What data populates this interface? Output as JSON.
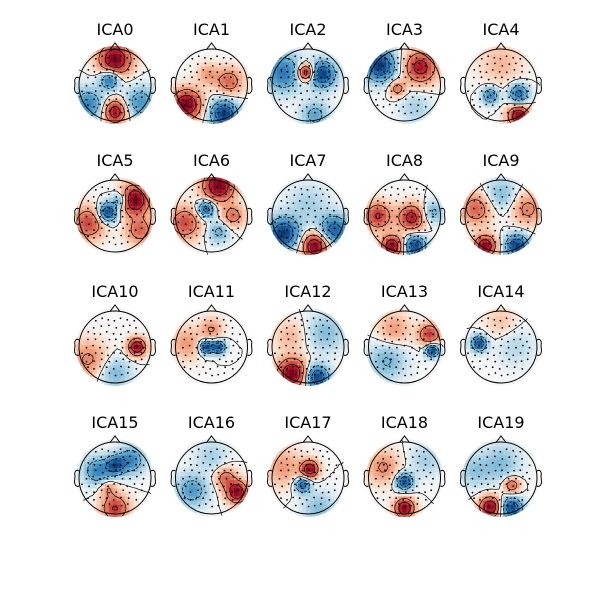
{
  "figure": {
    "components": [
      {
        "title": "ICA0",
        "poles": [
          {
            "p": [
              0.0,
              0.72
            ],
            "s": 0.3,
            "v": 1.0
          },
          {
            "p": [
              -0.15,
              0.15
            ],
            "s": 0.18,
            "v": -0.8
          },
          {
            "p": [
              0.0,
              -0.75
            ],
            "s": 0.22,
            "v": 0.9
          },
          {
            "p": [
              -0.75,
              -0.55
            ],
            "s": 0.3,
            "v": -0.6
          },
          {
            "p": [
              0.72,
              -0.5
            ],
            "s": 0.3,
            "v": -0.5
          }
        ]
      },
      {
        "title": "ICA1",
        "poles": [
          {
            "p": [
              -0.7,
              -0.55
            ],
            "s": 0.28,
            "v": 1.0
          },
          {
            "p": [
              0.35,
              -0.82
            ],
            "s": 0.26,
            "v": -1.0
          },
          {
            "p": [
              0.5,
              0.1
            ],
            "s": 0.25,
            "v": 0.5
          },
          {
            "p": [
              -0.1,
              0.3
            ],
            "s": 0.2,
            "v": 0.3
          }
        ]
      },
      {
        "title": "ICA2",
        "poles": [
          {
            "p": [
              -0.05,
              0.35
            ],
            "s": 0.16,
            "v": 1.0
          },
          {
            "p": [
              0.4,
              0.3
            ],
            "s": 0.25,
            "v": -0.9
          },
          {
            "p": [
              -0.7,
              0.35
            ],
            "s": 0.35,
            "v": -0.6
          },
          {
            "p": [
              0.2,
              -0.85
            ],
            "s": 0.25,
            "v": -0.4
          }
        ]
      },
      {
        "title": "ICA3",
        "poles": [
          {
            "p": [
              -0.7,
              0.55
            ],
            "s": 0.3,
            "v": -1.0
          },
          {
            "p": [
              0.45,
              0.5
            ],
            "s": 0.3,
            "v": 0.8
          },
          {
            "p": [
              -0.2,
              -0.1
            ],
            "s": 0.15,
            "v": 0.5
          },
          {
            "p": [
              0.3,
              -0.65
            ],
            "s": 0.3,
            "v": -0.2
          }
        ]
      },
      {
        "title": "ICA4",
        "poles": [
          {
            "p": [
              0.5,
              -0.88
            ],
            "s": 0.2,
            "v": 1.0
          },
          {
            "p": [
              0.5,
              -0.25
            ],
            "s": 0.18,
            "v": -0.8
          },
          {
            "p": [
              -0.3,
              -0.3
            ],
            "s": 0.15,
            "v": -0.7
          },
          {
            "p": [
              0.0,
              0.6
            ],
            "s": 0.4,
            "v": 0.2
          }
        ]
      },
      {
        "title": "ICA5",
        "poles": [
          {
            "p": [
              -0.2,
              0.1
            ],
            "s": 0.18,
            "v": -1.0
          },
          {
            "p": [
              0.15,
              0.45
            ],
            "s": 0.15,
            "v": -0.6
          },
          {
            "p": [
              0.55,
              0.45
            ],
            "s": 0.28,
            "v": 1.0
          },
          {
            "p": [
              -0.75,
              -0.2
            ],
            "s": 0.3,
            "v": 0.6
          },
          {
            "p": [
              0.7,
              -0.4
            ],
            "s": 0.25,
            "v": 0.5
          }
        ]
      },
      {
        "title": "ICA6",
        "poles": [
          {
            "p": [
              0.2,
              0.85
            ],
            "s": 0.3,
            "v": 1.0
          },
          {
            "p": [
              -0.15,
              0.2
            ],
            "s": 0.16,
            "v": -0.9
          },
          {
            "p": [
              -0.75,
              -0.2
            ],
            "s": 0.3,
            "v": 0.6
          },
          {
            "p": [
              0.6,
              0.0
            ],
            "s": 0.2,
            "v": 0.5
          },
          {
            "p": [
              0.2,
              -0.45
            ],
            "s": 0.2,
            "v": -0.4
          }
        ]
      },
      {
        "title": "ICA7",
        "poles": [
          {
            "p": [
              -0.7,
              -0.5
            ],
            "s": 0.3,
            "v": -1.0
          },
          {
            "p": [
              0.75,
              -0.4
            ],
            "s": 0.28,
            "v": -0.8
          },
          {
            "p": [
              0.2,
              -0.85
            ],
            "s": 0.25,
            "v": 1.0
          },
          {
            "p": [
              0.0,
              0.3
            ],
            "s": 0.4,
            "v": -0.2
          }
        ]
      },
      {
        "title": "ICA8",
        "poles": [
          {
            "p": [
              0.3,
              -0.85
            ],
            "s": 0.2,
            "v": -1.0
          },
          {
            "p": [
              -0.35,
              -0.85
            ],
            "s": 0.2,
            "v": 1.0
          },
          {
            "p": [
              0.2,
              -0.05
            ],
            "s": 0.25,
            "v": 0.8
          },
          {
            "p": [
              -0.75,
              0.0
            ],
            "s": 0.25,
            "v": 0.7
          },
          {
            "p": [
              0.8,
              0.1
            ],
            "s": 0.2,
            "v": -0.4
          }
        ]
      },
      {
        "title": "ICA9",
        "poles": [
          {
            "p": [
              -0.45,
              -0.85
            ],
            "s": 0.2,
            "v": 1.0
          },
          {
            "p": [
              0.45,
              -0.85
            ],
            "s": 0.22,
            "v": -1.0
          },
          {
            "p": [
              -0.7,
              0.2
            ],
            "s": 0.3,
            "v": 0.5
          },
          {
            "p": [
              0.75,
              0.2
            ],
            "s": 0.3,
            "v": 0.4
          },
          {
            "p": [
              0.0,
              0.6
            ],
            "s": 0.3,
            "v": -0.3
          }
        ]
      },
      {
        "title": "ICA10",
        "poles": [
          {
            "p": [
              0.62,
              0.0
            ],
            "s": 0.16,
            "v": 1.0
          },
          {
            "p": [
              -0.75,
              -0.35
            ],
            "s": 0.35,
            "v": 0.35
          },
          {
            "p": [
              0.0,
              -0.75
            ],
            "s": 0.3,
            "v": -0.3
          }
        ]
      },
      {
        "title": "ICA11",
        "poles": [
          {
            "p": [
              -0.15,
              0.0
            ],
            "s": 0.12,
            "v": -1.0
          },
          {
            "p": [
              0.2,
              0.0
            ],
            "s": 0.12,
            "v": -0.9
          },
          {
            "p": [
              0.0,
              0.5
            ],
            "s": 0.2,
            "v": 0.3
          },
          {
            "p": [
              -0.7,
              0.1
            ],
            "s": 0.3,
            "v": 0.25
          }
        ]
      },
      {
        "title": "ICA12",
        "poles": [
          {
            "p": [
              0.25,
              -0.85
            ],
            "s": 0.22,
            "v": -1.0
          },
          {
            "p": [
              -0.45,
              -0.75
            ],
            "s": 0.28,
            "v": 1.0
          },
          {
            "p": [
              0.5,
              0.4
            ],
            "s": 0.35,
            "v": -0.3
          },
          {
            "p": [
              -0.5,
              0.3
            ],
            "s": 0.3,
            "v": 0.2
          }
        ]
      },
      {
        "title": "ICA13",
        "poles": [
          {
            "p": [
              0.78,
              -0.1
            ],
            "s": 0.12,
            "v": -1.0
          },
          {
            "p": [
              0.7,
              0.35
            ],
            "s": 0.2,
            "v": 0.6
          },
          {
            "p": [
              -0.5,
              -0.4
            ],
            "s": 0.35,
            "v": -0.3
          },
          {
            "p": [
              -0.3,
              0.5
            ],
            "s": 0.3,
            "v": 0.25
          }
        ]
      },
      {
        "title": "ICA14",
        "poles": [
          {
            "p": [
              -0.62,
              0.1
            ],
            "s": 0.14,
            "v": -1.0
          },
          {
            "p": [
              0.4,
              0.0
            ],
            "s": 0.35,
            "v": -0.15
          },
          {
            "p": [
              0.0,
              0.7
            ],
            "s": 0.3,
            "v": 0.15
          }
        ]
      },
      {
        "title": "ICA15",
        "poles": [
          {
            "p": [
              0.0,
              0.35
            ],
            "s": 0.18,
            "v": -1.0
          },
          {
            "p": [
              0.45,
              0.5
            ],
            "s": 0.25,
            "v": -0.7
          },
          {
            "p": [
              -0.5,
              0.2
            ],
            "s": 0.25,
            "v": -0.7
          },
          {
            "p": [
              0.0,
              -0.85
            ],
            "s": 0.25,
            "v": 0.8
          },
          {
            "p": [
              -0.2,
              -0.3
            ],
            "s": 0.15,
            "v": 0.4
          }
        ]
      },
      {
        "title": "ICA16",
        "poles": [
          {
            "p": [
              0.72,
              -0.4
            ],
            "s": 0.2,
            "v": 1.0
          },
          {
            "p": [
              0.4,
              0.0
            ],
            "s": 0.2,
            "v": 0.5
          },
          {
            "p": [
              -0.55,
              -0.35
            ],
            "s": 0.3,
            "v": -0.5
          },
          {
            "p": [
              0.0,
              0.6
            ],
            "s": 0.3,
            "v": -0.2
          }
        ]
      },
      {
        "title": "ICA17",
        "poles": [
          {
            "p": [
              0.05,
              0.25
            ],
            "s": 0.16,
            "v": 1.0
          },
          {
            "p": [
              -0.15,
              -0.2
            ],
            "s": 0.14,
            "v": -0.9
          },
          {
            "p": [
              0.3,
              -0.85
            ],
            "s": 0.3,
            "v": -0.3
          },
          {
            "p": [
              -0.7,
              0.3
            ],
            "s": 0.35,
            "v": 0.3
          }
        ]
      },
      {
        "title": "ICA18",
        "poles": [
          {
            "p": [
              0.0,
              -0.1
            ],
            "s": 0.15,
            "v": -1.0
          },
          {
            "p": [
              0.0,
              -0.85
            ],
            "s": 0.18,
            "v": 1.0
          },
          {
            "p": [
              -0.6,
              0.3
            ],
            "s": 0.3,
            "v": 0.35
          },
          {
            "p": [
              0.6,
              0.5
            ],
            "s": 0.3,
            "v": -0.2
          }
        ]
      },
      {
        "title": "ICA19",
        "poles": [
          {
            "p": [
              -0.3,
              -0.82
            ],
            "s": 0.2,
            "v": 1.0
          },
          {
            "p": [
              0.3,
              -0.85
            ],
            "s": 0.2,
            "v": -1.0
          },
          {
            "p": [
              0.3,
              -0.2
            ],
            "s": 0.15,
            "v": 0.6
          },
          {
            "p": [
              0.0,
              0.4
            ],
            "s": 0.35,
            "v": -0.3
          },
          {
            "p": [
              -0.75,
              0.2
            ],
            "s": 0.3,
            "v": -0.25
          }
        ]
      }
    ]
  }
}
